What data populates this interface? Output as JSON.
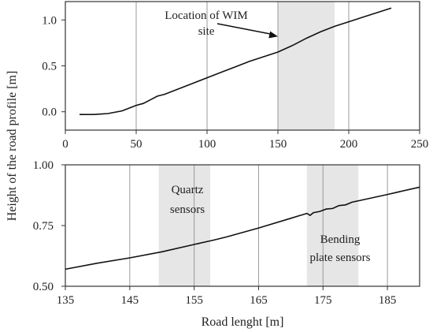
{
  "chart_data": [
    {
      "type": "line",
      "panel": "top",
      "xlim": [
        0,
        250
      ],
      "ylim": [
        -0.2,
        1.2
      ],
      "x_ticks": [
        0,
        50,
        100,
        150,
        200,
        250
      ],
      "y_ticks": [
        0.0,
        0.5,
        1.0
      ],
      "x_tick_labels": [
        "0",
        "50",
        "100",
        "150",
        "200",
        "250"
      ],
      "y_tick_labels": [
        "0.0",
        "0.5",
        "1.0"
      ],
      "grid_x": [
        50,
        100,
        150,
        200
      ],
      "shaded_regions": [
        {
          "x0": 150,
          "x1": 190
        }
      ],
      "annotations": [
        {
          "text_lines": [
            "Location of WIM",
            "site"
          ],
          "arrow_to": {
            "x": 150,
            "y": 0.82
          }
        }
      ],
      "series": [
        {
          "x": [
            10,
            20,
            30,
            40,
            45,
            50,
            55,
            60,
            65,
            70,
            80,
            90,
            100,
            110,
            120,
            130,
            140,
            150,
            160,
            170,
            180,
            190,
            200,
            210,
            220,
            230
          ],
          "y": [
            -0.03,
            -0.03,
            -0.02,
            0.01,
            0.04,
            0.07,
            0.09,
            0.13,
            0.17,
            0.19,
            0.25,
            0.31,
            0.37,
            0.43,
            0.49,
            0.55,
            0.6,
            0.65,
            0.72,
            0.8,
            0.87,
            0.93,
            0.98,
            1.03,
            1.08,
            1.13
          ]
        }
      ]
    },
    {
      "type": "line",
      "panel": "bottom",
      "xlim": [
        135,
        190
      ],
      "ylim": [
        0.5,
        1.0
      ],
      "x_ticks": [
        135,
        145,
        155,
        165,
        175,
        185
      ],
      "y_ticks": [
        0.5,
        0.75,
        1.0
      ],
      "x_tick_labels": [
        "135",
        "145",
        "155",
        "165",
        "175",
        "185"
      ],
      "y_tick_labels": [
        "0.50",
        "0.75",
        "1.00"
      ],
      "grid_x": [
        145,
        155,
        165,
        175,
        185
      ],
      "shaded_regions": [
        {
          "x0": 149.5,
          "x1": 157.5
        },
        {
          "x0": 172.5,
          "x1": 180.5
        }
      ],
      "annotations": [
        {
          "text_lines": [
            "Quartz",
            "sensors"
          ]
        },
        {
          "text_lines": [
            "Bending",
            "plate sensors"
          ]
        }
      ],
      "series": [
        {
          "x": [
            135,
            140,
            145,
            150,
            155,
            158,
            160,
            165,
            170,
            172.5,
            173,
            173.5,
            174.5,
            175.5,
            176.5,
            177.5,
            178.5,
            179.5,
            180.5,
            185,
            190
          ],
          "y": [
            0.57,
            0.595,
            0.617,
            0.642,
            0.672,
            0.69,
            0.703,
            0.74,
            0.78,
            0.8,
            0.792,
            0.803,
            0.808,
            0.818,
            0.82,
            0.832,
            0.835,
            0.846,
            0.852,
            0.878,
            0.908
          ]
        }
      ]
    }
  ],
  "labels": {
    "y_axis": "Height of the road profile [m]",
    "x_axis": "Road lenght [m]"
  }
}
